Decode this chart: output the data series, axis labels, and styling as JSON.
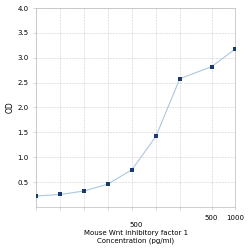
{
  "x": [
    3.125,
    6.25,
    12.5,
    25,
    50,
    100,
    200,
    500,
    1000
  ],
  "y": [
    0.22,
    0.25,
    0.32,
    0.46,
    0.75,
    1.42,
    2.58,
    2.82,
    3.18
  ],
  "xlabel_line1": "500",
  "xlabel_line2": "Mouse Wnt inhibitory factor 1",
  "xlabel_line3": "Concentration (pg/ml)",
  "ylabel": "OD",
  "xlim_log": [
    3.125,
    1000
  ],
  "ylim": [
    0,
    4
  ],
  "yticks": [
    0.5,
    1.0,
    1.5,
    2.0,
    2.5,
    3.0,
    3.5,
    4.0
  ],
  "xtick_labels_show": [
    500,
    1000
  ],
  "line_color": "#aac8e0",
  "marker_color": "#1a3a6b",
  "marker_size": 3.5,
  "background_color": "#ffffff",
  "grid_color": "#c8c8d0",
  "spine_color": "#bbbbbb",
  "tick_label_fontsize": 5,
  "ylabel_fontsize": 5.5,
  "xlabel_fontsize": 5
}
